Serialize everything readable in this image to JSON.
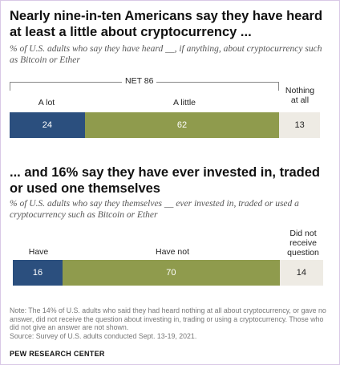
{
  "chart_data": [
    {
      "type": "bar",
      "title": "Nearly nine-in-ten Americans say they have heard at least a little about cryptocurrency ...",
      "subtitle": "% of U.S. adults who say they have heard __, if anything, about cryptocurrency such as Bitcoin or Ether",
      "categories": [
        "A lot",
        "A little",
        "Nothing at all"
      ],
      "values": [
        24,
        62,
        13
      ],
      "colors": [
        "#2b4f7e",
        "#8f9b4d",
        "#eeebe4"
      ],
      "net_label": "NET 86",
      "stacked": true,
      "xlim": [
        0,
        100
      ]
    },
    {
      "type": "bar",
      "title": "... and 16% say they have ever invested in, traded or used one themselves",
      "subtitle": "% of U.S. adults who say they themselves __ ever invested in, traded or used a cryptocurrency such as Bitcoin or Ether",
      "categories": [
        "Have",
        "Have not",
        "Did not receive question"
      ],
      "values": [
        16,
        70,
        14
      ],
      "colors": [
        "#2b4f7e",
        "#8f9b4d",
        "#eeebe4"
      ],
      "stacked": true,
      "xlim": [
        0,
        100
      ]
    }
  ],
  "note": "Note: The 14% of U.S. adults who said they had heard nothing at all about cryptocurrency, or gave no answer, did not receive the question about investing in, trading or using a cryptocurrency. Those who did not give an answer are not shown.",
  "source": "Source: Survey of U.S. adults conducted Sept. 13-19, 2021.",
  "brand": "PEW RESEARCH CENTER"
}
